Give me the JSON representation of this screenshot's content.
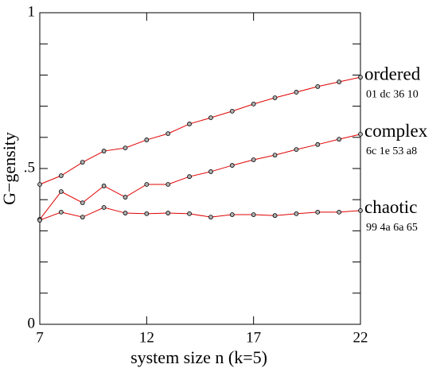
{
  "chart_data": {
    "type": "line",
    "xlabel": "system size  n (k=5)",
    "ylabel": "G−gensity",
    "x": [
      7,
      8,
      9,
      10,
      11,
      12,
      13,
      14,
      15,
      16,
      17,
      18,
      19,
      20,
      21,
      22
    ],
    "xlim": [
      7,
      22
    ],
    "xticks": [
      7,
      12,
      17,
      22
    ],
    "ylim": [
      0,
      1
    ],
    "yticks": [
      0,
      {
        "value": 0.5,
        "label": ".5"
      },
      1
    ],
    "yminorticks": [
      0.1,
      0.2,
      0.3,
      0.4,
      0.6,
      0.7,
      0.8,
      0.9
    ],
    "line_color": "#e00000",
    "marker_fill": "#b0b0b0",
    "series": [
      {
        "name": "ordered",
        "code": "01 dc 36 10",
        "values": [
          0.449,
          0.477,
          0.52,
          0.556,
          0.566,
          0.592,
          0.612,
          0.643,
          0.663,
          0.684,
          0.707,
          0.727,
          0.745,
          0.763,
          0.778,
          0.793
        ]
      },
      {
        "name": "complex",
        "code": "6c 1e 53 a8",
        "values": [
          0.337,
          0.426,
          0.39,
          0.444,
          0.408,
          0.449,
          0.449,
          0.474,
          0.49,
          0.51,
          0.528,
          0.543,
          0.561,
          0.577,
          0.594,
          0.61
        ]
      },
      {
        "name": "chaotic",
        "code": "99 4a 6a 65",
        "values": [
          0.334,
          0.36,
          0.344,
          0.375,
          0.357,
          0.355,
          0.357,
          0.355,
          0.344,
          0.352,
          0.352,
          0.349,
          0.355,
          0.36,
          0.36,
          0.365
        ]
      }
    ]
  }
}
